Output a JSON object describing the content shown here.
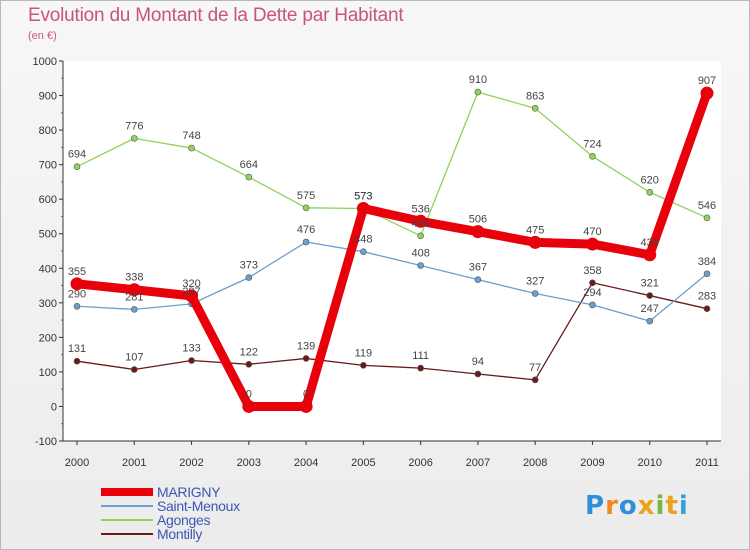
{
  "chart_data": {
    "type": "line",
    "title": "Evolution du Montant de la Dette par Habitant",
    "subtitle": "(en €)",
    "x": [
      "2000",
      "2001",
      "2002",
      "2003",
      "2004",
      "2005",
      "2006",
      "2007",
      "2008",
      "2009",
      "2010",
      "2011"
    ],
    "ylim": [
      -100,
      1000
    ],
    "yticks": [
      -100,
      0,
      100,
      200,
      300,
      400,
      500,
      600,
      700,
      800,
      900,
      1000
    ],
    "grid": false,
    "legend_position": "bottom-left",
    "series": [
      {
        "name": "MARIGNY",
        "color": "#e8000b",
        "values": [
          355,
          338,
          320,
          0,
          0,
          573,
          536,
          506,
          475,
          470,
          439,
          907
        ]
      },
      {
        "name": "Saint-Menoux",
        "color": "#6b9fd1",
        "values": [
          290,
          281,
          297,
          373,
          476,
          448,
          408,
          367,
          327,
          294,
          247,
          384
        ]
      },
      {
        "name": "Agonges",
        "color": "#8fd35a",
        "values": [
          694,
          776,
          748,
          664,
          575,
          573,
          494,
          910,
          863,
          724,
          620,
          546
        ]
      },
      {
        "name": "Montilly",
        "color": "#6b1a1a",
        "values": [
          131,
          107,
          133,
          122,
          139,
          119,
          111,
          94,
          77,
          358,
          321,
          283
        ]
      }
    ]
  },
  "logo": {
    "letters": [
      "P",
      "r",
      "o",
      "x",
      "i",
      "t",
      "i"
    ],
    "colors": [
      "#2f8fd8",
      "#f08a1c",
      "#2f8fd8",
      "#e8a21c",
      "#7ab63a",
      "#e8a21c",
      "#3aa0d8"
    ]
  }
}
